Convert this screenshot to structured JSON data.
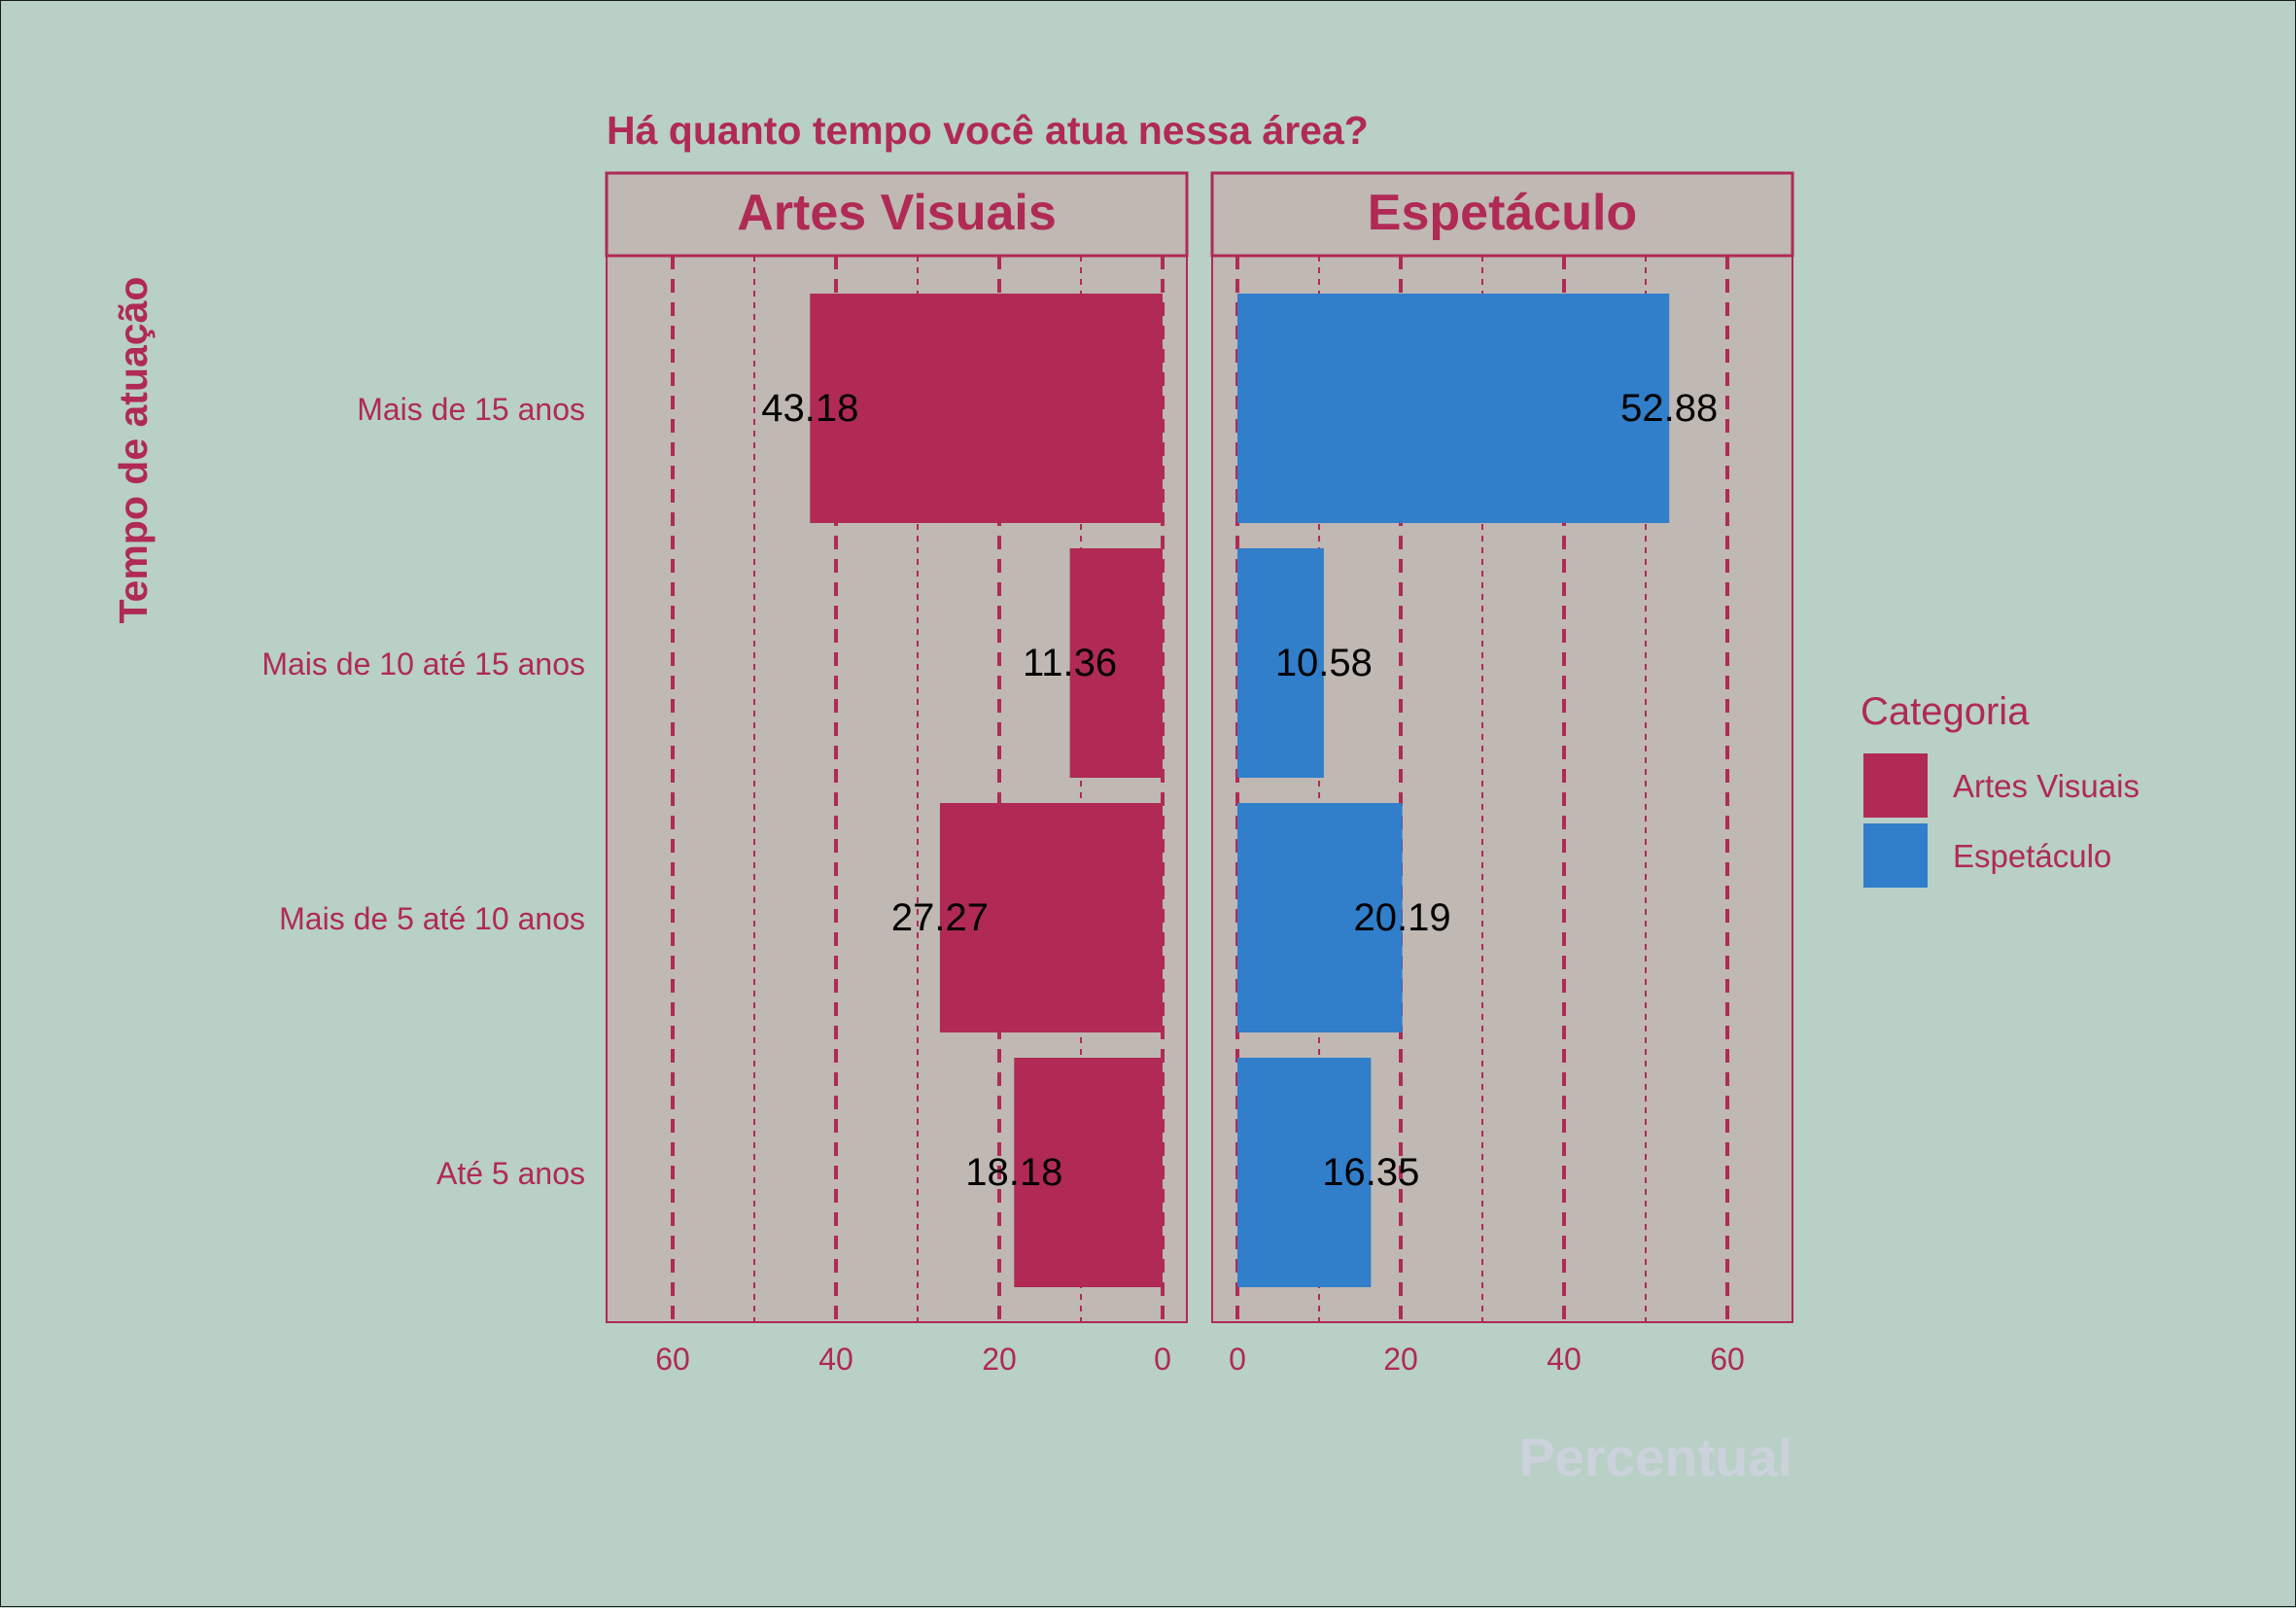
{
  "chart_data": {
    "type": "bar",
    "orientation": "horizontal",
    "title": "Há quanto tempo você atua nessa área?",
    "ylabel": "Tempo de atuação",
    "xlabel": "Percentual",
    "categories": [
      "Mais de 15 anos",
      "Mais de 10 até 15 anos",
      "Mais de 5 até 10 anos",
      "Até 5 anos"
    ],
    "xlim": [
      0,
      70
    ],
    "xticks": [
      0,
      20,
      40,
      60
    ],
    "grid": true,
    "legend": {
      "title": "Categoria",
      "position": "right"
    },
    "series": [
      {
        "name": "Artes Visuais",
        "direction": "reversed",
        "color": "#b02a55",
        "values": [
          43.18,
          11.36,
          27.27,
          18.18
        ],
        "labels": [
          "43.18",
          "11.36",
          "27.27",
          "18.18"
        ]
      },
      {
        "name": "Espetáculo",
        "direction": "normal",
        "color": "#317ecb",
        "values": [
          52.88,
          10.58,
          20.19,
          16.35
        ],
        "labels": [
          "52.88",
          "10.58",
          "20.19",
          "16.35"
        ]
      }
    ]
  },
  "colors": {
    "background": "#b8d0c6",
    "panel": "#bfb8b3",
    "accent": "#b02a55",
    "xlabel": "#ccd2dc",
    "value_text": "#000000"
  }
}
